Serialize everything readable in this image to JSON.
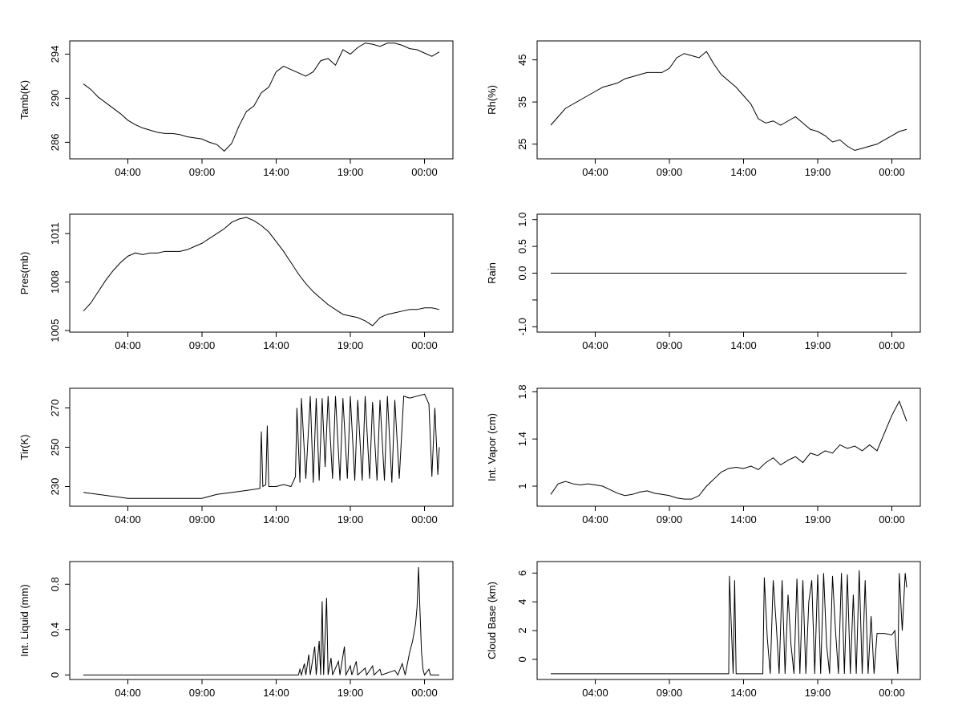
{
  "figure": {
    "panels_layout": "4 rows x 2 columns",
    "x_tick_labels": [
      "04:00",
      "09:00",
      "14:00",
      "19:00",
      "00:00"
    ]
  },
  "chart_data": [
    {
      "type": "line",
      "ylabel": "Tamb(K)",
      "xlim": [
        0,
        24
      ],
      "ylim": [
        284.5,
        295.2
      ],
      "yticks": [
        286,
        290,
        294
      ],
      "xticks": [
        3,
        8,
        13,
        18,
        23
      ],
      "xticklabels": [
        "04:00",
        "09:00",
        "14:00",
        "19:00",
        "00:00"
      ],
      "series": [
        {
          "x": [
            0,
            0.5,
            1,
            1.5,
            2,
            2.5,
            3,
            3.5,
            4,
            4.5,
            5,
            5.5,
            6,
            6.5,
            7,
            7.5,
            8,
            8.5,
            9,
            9.5,
            10,
            10.5,
            11,
            11.5,
            12,
            12.5,
            13,
            13.5,
            14,
            14.5,
            15,
            15.5,
            16,
            16.5,
            17,
            17.5,
            18,
            18.5,
            19,
            19.5,
            20,
            20.5,
            21,
            21.5,
            22,
            22.5,
            23,
            23.5,
            24
          ],
          "y": [
            291.3,
            290.8,
            290.1,
            289.6,
            289.1,
            288.6,
            288.0,
            287.6,
            287.3,
            287.1,
            286.9,
            286.8,
            286.8,
            286.7,
            286.5,
            286.4,
            286.3,
            286.0,
            285.8,
            285.2,
            285.9,
            287.5,
            288.8,
            289.3,
            290.5,
            291.0,
            292.4,
            292.9,
            292.6,
            292.3,
            292.0,
            292.4,
            293.4,
            293.6,
            293.0,
            294.4,
            294.0,
            294.6,
            295.0,
            294.9,
            294.7,
            295.0,
            295.0,
            294.8,
            294.5,
            294.4,
            294.1,
            293.8,
            294.2
          ]
        }
      ]
    },
    {
      "type": "line",
      "ylabel": "Rh(%)",
      "xlim": [
        0,
        24
      ],
      "ylim": [
        21.5,
        49.5
      ],
      "yticks": [
        25,
        35,
        45
      ],
      "xticks": [
        3,
        8,
        13,
        18,
        23
      ],
      "xticklabels": [
        "04:00",
        "09:00",
        "14:00",
        "19:00",
        "00:00"
      ],
      "series": [
        {
          "x": [
            0,
            0.5,
            1,
            1.5,
            2,
            2.5,
            3,
            3.5,
            4,
            4.5,
            5,
            5.5,
            6,
            6.5,
            7,
            7.5,
            8,
            8.5,
            9,
            9.5,
            10,
            10.5,
            11,
            11.5,
            12,
            12.5,
            13,
            13.5,
            14,
            14.5,
            15,
            15.5,
            16,
            16.5,
            17,
            17.5,
            18,
            18.5,
            19,
            19.5,
            20,
            20.5,
            21,
            21.5,
            22,
            22.5,
            23,
            23.5,
            24
          ],
          "y": [
            29.5,
            31.5,
            33.5,
            34.5,
            35.5,
            36.5,
            37.5,
            38.5,
            39.0,
            39.5,
            40.5,
            41.0,
            41.5,
            42.0,
            42.0,
            42.0,
            43.0,
            45.5,
            46.5,
            46.0,
            45.5,
            47.0,
            44.0,
            41.5,
            40.0,
            38.5,
            36.5,
            34.5,
            31.0,
            30.0,
            30.5,
            29.5,
            30.5,
            31.5,
            30.0,
            28.5,
            28.0,
            27.0,
            25.5,
            26.0,
            24.5,
            23.5,
            24.0,
            24.5,
            25.0,
            26.0,
            27.0,
            28.0,
            28.5
          ]
        }
      ]
    },
    {
      "type": "line",
      "ylabel": "Pres(mb)",
      "xlim": [
        0,
        24
      ],
      "ylim": [
        1004.9,
        1012.2
      ],
      "yticks": [
        1005,
        1008,
        1011
      ],
      "xticks": [
        3,
        8,
        13,
        18,
        23
      ],
      "xticklabels": [
        "04:00",
        "09:00",
        "14:00",
        "19:00",
        "00:00"
      ],
      "series": [
        {
          "x": [
            0,
            0.5,
            1,
            1.5,
            2,
            2.5,
            3,
            3.5,
            4,
            4.5,
            5,
            5.5,
            6,
            6.5,
            7,
            7.5,
            8,
            8.5,
            9,
            9.5,
            10,
            10.5,
            11,
            11.5,
            12,
            12.5,
            13,
            13.5,
            14,
            14.5,
            15,
            15.5,
            16,
            16.5,
            17,
            17.5,
            18,
            18.5,
            19,
            19.5,
            20,
            20.5,
            21,
            21.5,
            22,
            22.5,
            23,
            23.5,
            24
          ],
          "y": [
            1006.2,
            1006.7,
            1007.4,
            1008.1,
            1008.7,
            1009.2,
            1009.6,
            1009.8,
            1009.7,
            1009.8,
            1009.8,
            1009.9,
            1009.9,
            1009.9,
            1010.0,
            1010.2,
            1010.4,
            1010.7,
            1011.0,
            1011.3,
            1011.7,
            1011.9,
            1012.0,
            1011.8,
            1011.5,
            1011.1,
            1010.5,
            1009.9,
            1009.2,
            1008.5,
            1007.9,
            1007.4,
            1007.0,
            1006.6,
            1006.3,
            1006.0,
            1005.9,
            1005.8,
            1005.6,
            1005.3,
            1005.8,
            1006.0,
            1006.1,
            1006.2,
            1006.3,
            1006.3,
            1006.4,
            1006.4,
            1006.3
          ]
        }
      ]
    },
    {
      "type": "line",
      "ylabel": "Rain",
      "xlim": [
        0,
        24
      ],
      "ylim": [
        -1.1,
        1.1
      ],
      "yticks": [
        -1.0,
        -0.5,
        0.0,
        0.5,
        1.0
      ],
      "yticklabels": [
        "-1.0",
        "",
        "0.0",
        "0.5",
        "1.0"
      ],
      "xticks": [
        3,
        8,
        13,
        18,
        23
      ],
      "xticklabels": [
        "04:00",
        "09:00",
        "14:00",
        "19:00",
        "00:00"
      ],
      "series": [
        {
          "x": [
            0,
            24
          ],
          "y": [
            0,
            0
          ]
        }
      ]
    },
    {
      "type": "line",
      "ylabel": "Tir(K)",
      "xlim": [
        0,
        24
      ],
      "ylim": [
        220,
        280
      ],
      "yticks": [
        230,
        250,
        270
      ],
      "xticks": [
        3,
        8,
        13,
        18,
        23
      ],
      "xticklabels": [
        "04:00",
        "09:00",
        "14:00",
        "19:00",
        "00:00"
      ],
      "series": [
        {
          "x": [
            0,
            1,
            2,
            3,
            4,
            5,
            6,
            7,
            8,
            9,
            10,
            11,
            11.9,
            12,
            12.1,
            12.3,
            12.4,
            12.5,
            13,
            13.5,
            14,
            14.3,
            14.4,
            14.6,
            14.7,
            15.0,
            15.3,
            15.5,
            15.7,
            15.9,
            16.1,
            16.3,
            16.5,
            16.8,
            17.0,
            17.3,
            17.5,
            17.8,
            18.0,
            18.3,
            18.5,
            18.8,
            19.0,
            19.3,
            19.5,
            19.8,
            20.0,
            20.3,
            20.5,
            20.8,
            21.0,
            21.3,
            21.6,
            22.0,
            22.5,
            23.0,
            23.3,
            23.5,
            23.7,
            23.9,
            24.0
          ],
          "y": [
            227,
            226,
            225,
            224,
            224,
            224,
            224,
            224,
            224,
            226,
            227,
            228,
            229,
            258,
            230,
            231,
            261,
            230,
            230,
            231,
            230,
            235,
            270,
            232,
            275,
            234,
            276,
            232,
            275,
            233,
            275,
            240,
            276,
            234,
            276,
            233,
            275,
            234,
            276,
            233,
            274,
            233,
            276,
            234,
            273,
            233,
            274,
            233,
            276,
            232,
            274,
            234,
            276,
            275,
            276,
            277,
            272,
            235,
            270,
            236,
            250
          ]
        }
      ]
    },
    {
      "type": "line",
      "ylabel": "Int. Vapor (cm)",
      "xlim": [
        0,
        24
      ],
      "ylim": [
        0.83,
        1.83
      ],
      "yticks": [
        1.0,
        1.4,
        1.8
      ],
      "xticks": [
        3,
        8,
        13,
        18,
        23
      ],
      "xticklabels": [
        "04:00",
        "09:00",
        "14:00",
        "19:00",
        "00:00"
      ],
      "series": [
        {
          "x": [
            0,
            0.5,
            1,
            1.5,
            2,
            2.5,
            3,
            3.5,
            4,
            4.5,
            5,
            5.5,
            6,
            6.5,
            7,
            7.5,
            8,
            8.5,
            9,
            9.5,
            10,
            10.5,
            11,
            11.5,
            12,
            12.5,
            13,
            13.5,
            14,
            14.5,
            15,
            15.5,
            16,
            16.5,
            17,
            17.5,
            18,
            18.5,
            19,
            19.5,
            20,
            20.5,
            21,
            21.5,
            22,
            22.5,
            23,
            23.5,
            24
          ],
          "y": [
            0.93,
            1.02,
            1.04,
            1.02,
            1.01,
            1.02,
            1.01,
            1.0,
            0.97,
            0.94,
            0.92,
            0.93,
            0.95,
            0.96,
            0.94,
            0.93,
            0.92,
            0.9,
            0.89,
            0.89,
            0.92,
            1.0,
            1.06,
            1.12,
            1.15,
            1.16,
            1.15,
            1.17,
            1.14,
            1.2,
            1.24,
            1.18,
            1.22,
            1.25,
            1.2,
            1.28,
            1.26,
            1.3,
            1.28,
            1.35,
            1.32,
            1.34,
            1.3,
            1.35,
            1.3,
            1.45,
            1.6,
            1.72,
            1.55
          ]
        }
      ]
    },
    {
      "type": "line",
      "ylabel": "Int. Liquid (mm)",
      "xlim": [
        0,
        24
      ],
      "ylim": [
        -0.04,
        1.0
      ],
      "yticks": [
        0.0,
        0.4,
        0.8
      ],
      "xticks": [
        3,
        8,
        13,
        18,
        23
      ],
      "xticklabels": [
        "04:00",
        "09:00",
        "14:00",
        "19:00",
        "00:00"
      ],
      "series": [
        {
          "x": [
            0,
            14.5,
            14.6,
            14.7,
            14.9,
            15.0,
            15.2,
            15.3,
            15.6,
            15.7,
            15.9,
            16.0,
            16.1,
            16.2,
            16.4,
            16.5,
            16.7,
            16.8,
            17.2,
            17.3,
            17.6,
            17.7,
            18.0,
            18.1,
            18.4,
            18.5,
            19.0,
            19.1,
            19.5,
            19.6,
            20.0,
            20.1,
            21.0,
            21.2,
            21.5,
            21.7,
            22.0,
            22.2,
            22.4,
            22.5,
            22.6,
            22.7,
            22.8,
            22.9,
            23.0,
            23.3,
            23.4,
            24.0
          ],
          "y": [
            0,
            0,
            0.05,
            0,
            0.1,
            0,
            0.18,
            0,
            0.25,
            0,
            0.3,
            0,
            0.65,
            0,
            0.68,
            0,
            0.15,
            0,
            0.12,
            0,
            0.25,
            0,
            0.08,
            0,
            0.12,
            0,
            0.06,
            0,
            0.08,
            0,
            0.05,
            0,
            0.04,
            0,
            0.1,
            0,
            0.2,
            0.3,
            0.45,
            0.6,
            0.95,
            0.55,
            0.2,
            0.05,
            0,
            0.05,
            0,
            0
          ]
        }
      ]
    },
    {
      "type": "line",
      "ylabel": "Cloud Base (km)",
      "xlim": [
        0,
        24
      ],
      "ylim": [
        -1.4,
        6.8
      ],
      "yticks": [
        0,
        2,
        4,
        6
      ],
      "xticks": [
        3,
        8,
        13,
        18,
        23
      ],
      "xticklabels": [
        "04:00",
        "09:00",
        "14:00",
        "19:00",
        "00:00"
      ],
      "series": [
        {
          "x": [
            0,
            12.0,
            12.05,
            12.15,
            12.3,
            12.4,
            12.5,
            14.3,
            14.4,
            14.6,
            14.8,
            15.0,
            15.2,
            15.4,
            15.6,
            15.8,
            16.0,
            16.2,
            16.4,
            16.6,
            16.8,
            17.0,
            17.2,
            17.4,
            17.6,
            17.8,
            18.0,
            18.2,
            18.4,
            18.6,
            18.8,
            19.0,
            19.2,
            19.4,
            19.6,
            19.8,
            20.0,
            20.2,
            20.4,
            20.6,
            20.8,
            21.0,
            21.2,
            21.4,
            21.6,
            21.8,
            22.0,
            22.5,
            23.0,
            23.2,
            23.4,
            23.5,
            23.7,
            23.9,
            24.0
          ],
          "y": [
            -1,
            -1,
            5.8,
            3.0,
            -1,
            5.5,
            -1,
            -1,
            5.7,
            1.5,
            -1,
            5.5,
            2.5,
            -1,
            5.5,
            -1,
            4.5,
            1.0,
            -1,
            5.6,
            -1,
            5.5,
            -1,
            4.0,
            5.5,
            -1,
            5.9,
            -1,
            6.0,
            1.0,
            -1,
            5.8,
            2.0,
            -1,
            6.0,
            -1,
            5.9,
            -1,
            4.5,
            -1,
            6.2,
            -1,
            5.5,
            -1,
            3.0,
            -1,
            1.8,
            1.8,
            1.7,
            2.0,
            -1,
            6.0,
            2.0,
            6.0,
            5.0
          ]
        }
      ]
    }
  ]
}
